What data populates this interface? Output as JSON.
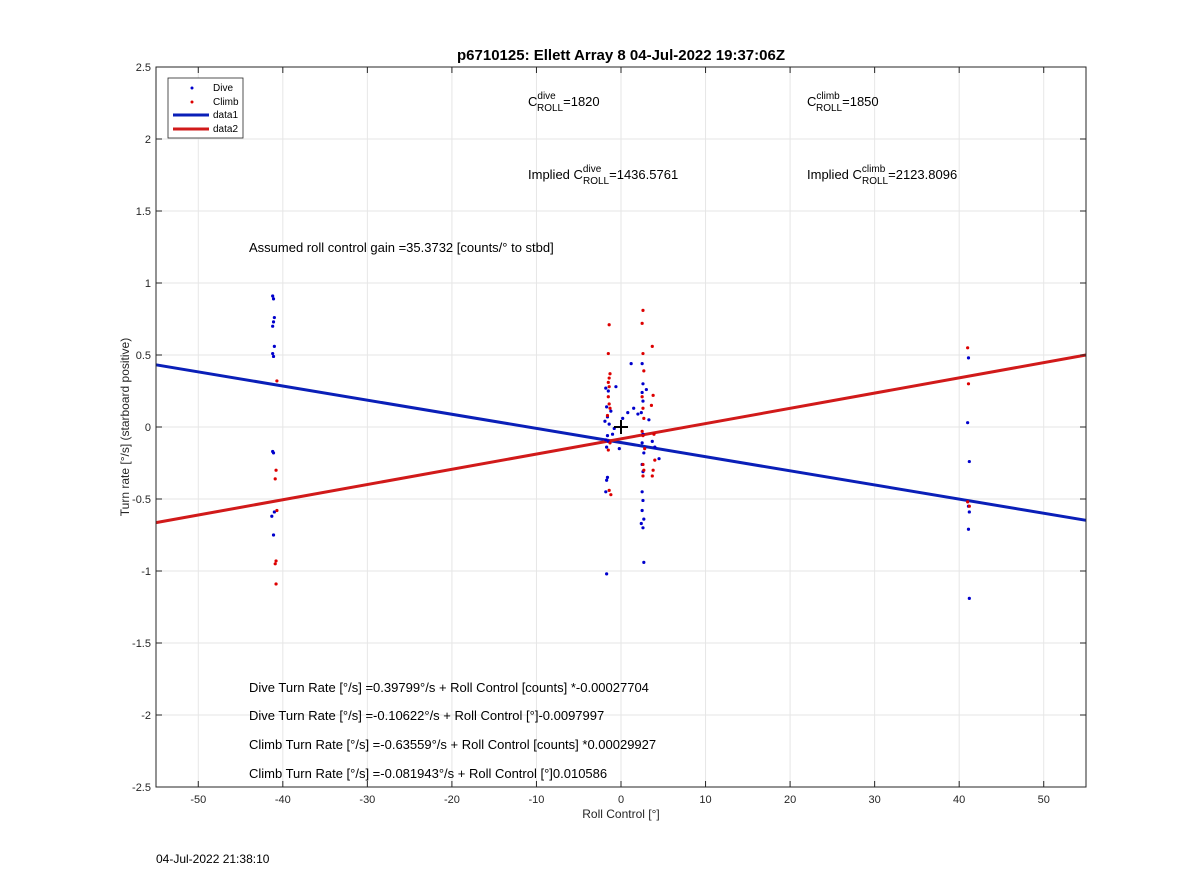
{
  "chart_data": {
    "type": "scatter",
    "title": "p6710125: Ellett Array 8 04-Jul-2022 19:37:06Z",
    "xlabel": "Roll Control [°]",
    "ylabel": "Turn rate [°/s] (starboard positive)",
    "xlim": [
      -55,
      55
    ],
    "ylim": [
      -2.5,
      2.5
    ],
    "xticks": [
      -50,
      -40,
      -30,
      -20,
      -10,
      0,
      10,
      20,
      30,
      40,
      50
    ],
    "yticks": [
      -2.5,
      -2,
      -1.5,
      -1,
      -0.5,
      0,
      0.5,
      1,
      1.5,
      2,
      2.5
    ],
    "grid": true,
    "legend_position": "top-left",
    "legend": [
      "Dive",
      "Climb",
      "data1",
      "data2"
    ],
    "colors": {
      "dive": "#0000cc",
      "climb": "#dd0000",
      "data1": "#0a1fb8",
      "data2": "#d11a1a"
    },
    "series": [
      {
        "name": "Dive",
        "marker": "point",
        "color": "#0000cc",
        "points": [
          [
            -41.2,
            0.91
          ],
          [
            -41.1,
            0.89
          ],
          [
            -41.0,
            0.76
          ],
          [
            -41.1,
            0.73
          ],
          [
            -41.2,
            0.7
          ],
          [
            -41.0,
            0.56
          ],
          [
            -41.2,
            0.51
          ],
          [
            -41.1,
            0.49
          ],
          [
            -41.2,
            -0.17
          ],
          [
            -41.1,
            -0.18
          ],
          [
            -41.0,
            -0.59
          ],
          [
            -41.3,
            -0.62
          ],
          [
            -41.1,
            -0.75
          ],
          [
            -1.8,
            0.27
          ],
          [
            -1.5,
            0.25
          ],
          [
            -1.7,
            0.14
          ],
          [
            -1.6,
            0.07
          ],
          [
            -1.9,
            0.04
          ],
          [
            -1.4,
            0.02
          ],
          [
            -1.6,
            -0.06
          ],
          [
            -1.8,
            -0.09
          ],
          [
            -1.5,
            -0.1
          ],
          [
            -1.7,
            -0.14
          ],
          [
            -1.6,
            -0.35
          ],
          [
            -1.7,
            -0.37
          ],
          [
            -1.8,
            -0.45
          ],
          [
            -1.7,
            -1.02
          ],
          [
            -1.2,
            0.11
          ],
          [
            -1.0,
            -0.05
          ],
          [
            -0.8,
            -0.01
          ],
          [
            -0.6,
            0.28
          ],
          [
            -0.2,
            -0.15
          ],
          [
            0.2,
            0.06
          ],
          [
            0.8,
            0.1
          ],
          [
            1.2,
            0.44
          ],
          [
            1.5,
            0.13
          ],
          [
            2.0,
            0.09
          ],
          [
            2.5,
            0.44
          ],
          [
            2.6,
            0.3
          ],
          [
            2.5,
            0.24
          ],
          [
            2.6,
            0.18
          ],
          [
            2.4,
            0.1
          ],
          [
            2.6,
            -0.05
          ],
          [
            2.5,
            -0.11
          ],
          [
            2.7,
            -0.18
          ],
          [
            2.5,
            -0.26
          ],
          [
            2.6,
            -0.31
          ],
          [
            2.5,
            -0.45
          ],
          [
            2.6,
            -0.51
          ],
          [
            2.5,
            -0.58
          ],
          [
            2.7,
            -0.64
          ],
          [
            2.4,
            -0.67
          ],
          [
            2.6,
            -0.7
          ],
          [
            2.7,
            -0.94
          ],
          [
            3.0,
            0.26
          ],
          [
            3.3,
            0.05
          ],
          [
            3.7,
            -0.1
          ],
          [
            4.0,
            -0.14
          ],
          [
            4.5,
            -0.22
          ],
          [
            41.1,
            0.48
          ],
          [
            41.0,
            0.03
          ],
          [
            41.2,
            -0.24
          ],
          [
            41.1,
            -0.55
          ],
          [
            41.2,
            -0.59
          ],
          [
            41.1,
            -0.71
          ],
          [
            41.2,
            -1.19
          ]
        ]
      },
      {
        "name": "Climb",
        "marker": "point",
        "color": "#dd0000",
        "points": [
          [
            -40.7,
            0.32
          ],
          [
            -40.8,
            -0.3
          ],
          [
            -40.9,
            -0.36
          ],
          [
            -40.7,
            -0.58
          ],
          [
            -40.8,
            -0.93
          ],
          [
            -40.9,
            -0.95
          ],
          [
            -40.8,
            -1.09
          ],
          [
            -1.4,
            0.71
          ],
          [
            -1.5,
            0.51
          ],
          [
            -1.3,
            0.37
          ],
          [
            -1.4,
            0.34
          ],
          [
            -1.5,
            0.31
          ],
          [
            -1.4,
            0.28
          ],
          [
            -1.5,
            0.21
          ],
          [
            -1.4,
            0.16
          ],
          [
            -1.3,
            0.13
          ],
          [
            -1.6,
            0.08
          ],
          [
            -1.3,
            -0.11
          ],
          [
            -1.5,
            -0.16
          ],
          [
            -1.4,
            -0.44
          ],
          [
            -1.2,
            -0.47
          ],
          [
            2.6,
            0.81
          ],
          [
            2.5,
            0.72
          ],
          [
            2.6,
            0.51
          ],
          [
            2.7,
            0.39
          ],
          [
            2.5,
            0.21
          ],
          [
            2.6,
            0.13
          ],
          [
            2.7,
            0.06
          ],
          [
            2.5,
            -0.03
          ],
          [
            2.6,
            -0.06
          ],
          [
            2.8,
            -0.15
          ],
          [
            2.6,
            -0.26
          ],
          [
            2.7,
            -0.3
          ],
          [
            2.6,
            -0.34
          ],
          [
            3.7,
            0.56
          ],
          [
            3.8,
            0.22
          ],
          [
            3.6,
            0.15
          ],
          [
            3.9,
            -0.05
          ],
          [
            4.0,
            -0.23
          ],
          [
            3.8,
            -0.3
          ],
          [
            3.7,
            -0.34
          ],
          [
            41.0,
            0.55
          ],
          [
            41.1,
            0.3
          ],
          [
            41.0,
            -0.52
          ],
          [
            41.2,
            -0.55
          ]
        ]
      },
      {
        "name": "data1",
        "type": "line",
        "color": "#0a1fb8",
        "x": [
          -55,
          55
        ],
        "y": [
          0.432,
          -0.648
        ]
      },
      {
        "name": "data2",
        "type": "line",
        "color": "#d11a1a",
        "x": [
          -55,
          55
        ],
        "y": [
          -0.664,
          0.5
        ]
      }
    ],
    "cross_marker": {
      "x": 0,
      "y": 0
    },
    "annotations": {
      "c_roll_dive": {
        "prefix": "C",
        "sup": "dive",
        "sub": "ROLL",
        "value": "=1820"
      },
      "c_roll_climb": {
        "prefix": "C",
        "sup": "climb",
        "sub": "ROLL",
        "value": "=1850"
      },
      "implied_dive": {
        "prefix": "Implied C",
        "sup": "dive",
        "sub": "ROLL",
        "value": "=1436.5761"
      },
      "implied_climb": {
        "prefix": "Implied C",
        "sup": "climb",
        "sub": "ROLL",
        "value": "=2123.8096"
      },
      "gain": "Assumed roll control gain =35.3732 [counts/° to stbd]",
      "eq1": "Dive Turn Rate [°/s] =0.39799°/s + Roll Control [counts] *-0.00027704",
      "eq2": "Dive Turn Rate [°/s] =-0.10622°/s + Roll Control [°]-0.0097997",
      "eq3": "Climb Turn Rate [°/s] =-0.63559°/s + Roll Control [counts] *0.00029927",
      "eq4": "Climb Turn Rate [°/s] =-0.081943°/s + Roll Control [°]0.010586"
    }
  },
  "footer": {
    "timestamp": "04-Jul-2022 21:38:10"
  }
}
